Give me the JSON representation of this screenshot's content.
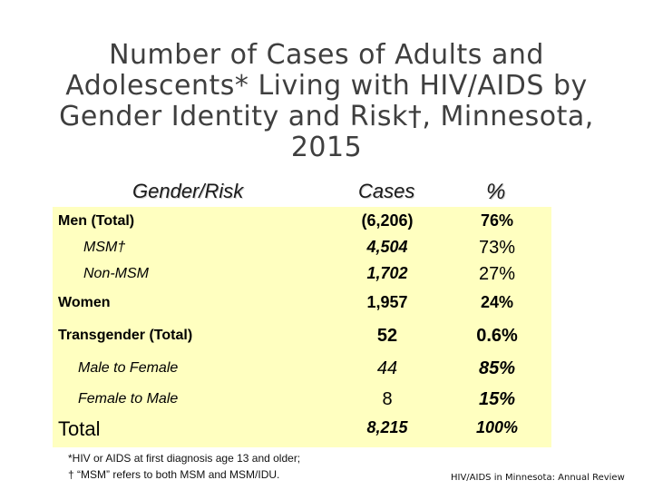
{
  "title_lines": [
    "Number of Cases of Adults and",
    "Adolescents*  Living with HIV/AIDS by",
    "Gender Identity  and Risk†, Minnesota,",
    "2015"
  ],
  "headers": {
    "risk": "Gender/Risk",
    "cases": "Cases",
    "pct": "%"
  },
  "rows": [
    {
      "label": "Men (Total)",
      "cases": "(6,206)",
      "pct": "76%"
    },
    {
      "label": "MSM†",
      "cases": "4,504",
      "pct": "73%"
    },
    {
      "label": "Non-MSM",
      "cases": "1,702",
      "pct": "27%"
    },
    {
      "label": "Women",
      "cases": "1,957",
      "pct": "24%"
    },
    {
      "label": "Transgender (Total)",
      "cases": "52",
      "pct": "0.6%"
    },
    {
      "label": "Male to Female",
      "cases": "44",
      "pct": "85%"
    },
    {
      "label": "Female to Male",
      "cases": "8",
      "pct": "15%"
    },
    {
      "label": "Total",
      "cases": "8,215",
      "pct": "100%"
    }
  ],
  "footnotes": [
    "*HIV or AIDS at first diagnosis age 13 and older;",
    "† “MSM” refers to both MSM and MSM/IDU."
  ],
  "source": "HIV/AIDS in Minnesota: Annual Review"
}
